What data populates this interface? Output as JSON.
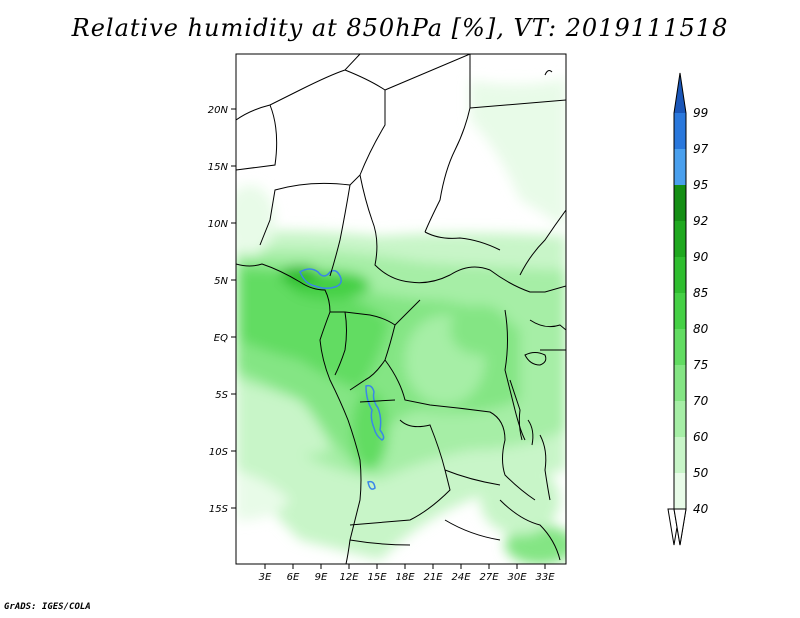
{
  "title": "Relative humidity at 850hPa [%], VT: 2019111518",
  "credit": "GrADS: IGES/COLA",
  "map": {
    "lat_ticks": [
      "20N",
      "15N",
      "10N",
      "5N",
      "EQ",
      "5S",
      "10S",
      "15S"
    ],
    "lon_ticks": [
      "3E",
      "6E",
      "9E",
      "12E",
      "15E",
      "18E",
      "21E",
      "24E",
      "27E",
      "30E",
      "33E"
    ]
  },
  "colorbar": {
    "labels": [
      "40",
      "50",
      "60",
      "70",
      "75",
      "80",
      "85",
      "90",
      "92",
      "95",
      "97",
      "99"
    ],
    "colors": [
      "#ffffff",
      "#e8fbe8",
      "#c8f5c8",
      "#a6eea6",
      "#84e584",
      "#62dc62",
      "#45d045",
      "#2fbe2f",
      "#1fa81f",
      "#158f15",
      "#4aa0ee",
      "#2a78dc",
      "#1a56b8"
    ]
  }
}
